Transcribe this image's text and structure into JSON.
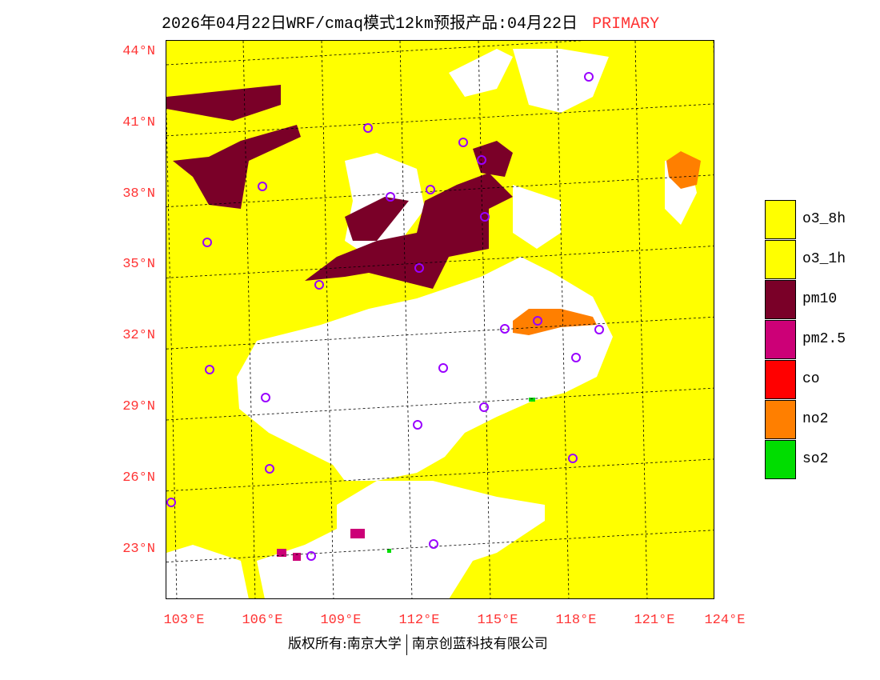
{
  "title": {
    "main": "2026年04月22日WRF/cmaq模式12km预报产品:04月22日",
    "tag": "PRIMARY"
  },
  "lat_labels": [
    "44°N",
    "41°N",
    "38°N",
    "35°N",
    "32°N",
    "29°N",
    "26°N",
    "23°N"
  ],
  "lon_labels": [
    "103°E",
    "106°E",
    "109°E",
    "112°E",
    "115°E",
    "118°E",
    "121°E",
    "124°E"
  ],
  "legend": [
    {
      "label": "o3_8h",
      "color": "#ffff00"
    },
    {
      "label": "o3_1h",
      "color": "#ffff00"
    },
    {
      "label": "pm10",
      "color": "#7a0028"
    },
    {
      "label": "pm2.5",
      "color": "#cc0077"
    },
    {
      "label": "co",
      "color": "#ff0000"
    },
    {
      "label": "no2",
      "color": "#ff7f00"
    },
    {
      "label": "so2",
      "color": "#00dd00"
    }
  ],
  "footer": {
    "left": "版权所有:南京大学",
    "right": "南京创蓝科技有限公司"
  }
}
